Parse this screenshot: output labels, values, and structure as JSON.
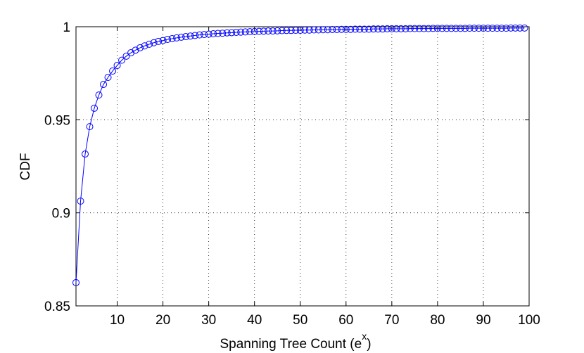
{
  "chart_data": {
    "type": "line",
    "xlabel": [
      "Spanning Tree Count (e",
      "x",
      ")"
    ],
    "ylabel": "CDF",
    "x": [
      1,
      2,
      3,
      4,
      5,
      6,
      7,
      8,
      9,
      10,
      11,
      12,
      13,
      14,
      15,
      16,
      17,
      18,
      19,
      20,
      21,
      22,
      23,
      24,
      25,
      26,
      27,
      28,
      29,
      30,
      31,
      32,
      33,
      34,
      35,
      36,
      37,
      38,
      39,
      40,
      41,
      42,
      43,
      44,
      45,
      46,
      47,
      48,
      49,
      50,
      51,
      52,
      53,
      54,
      55,
      56,
      57,
      58,
      59,
      60,
      61,
      62,
      63,
      64,
      65,
      66,
      67,
      68,
      69,
      70,
      71,
      72,
      73,
      74,
      75,
      76,
      77,
      78,
      79,
      80,
      81,
      82,
      83,
      84,
      85,
      86,
      87,
      88,
      89,
      90,
      91,
      92,
      93,
      94,
      95,
      96,
      97,
      98,
      99
    ],
    "series": [
      {
        "color": "#0000ff",
        "marker": "circle",
        "values": [
          0.8625,
          0.9063,
          0.9316,
          0.9463,
          0.9562,
          0.9633,
          0.969,
          0.9728,
          0.9762,
          0.9792,
          0.982,
          0.9842,
          0.986,
          0.9874,
          0.9887,
          0.9897,
          0.9906,
          0.9914,
          0.9921,
          0.9926,
          0.9932,
          0.9936,
          0.994,
          0.9944,
          0.9947,
          0.995,
          0.9953,
          0.9956,
          0.9958,
          0.996,
          0.9962,
          0.9964,
          0.9965,
          0.9967,
          0.9968,
          0.997,
          0.9971,
          0.9972,
          0.9973,
          0.9974,
          0.9975,
          0.9976,
          0.9977,
          0.9977,
          0.9978,
          0.9979,
          0.998,
          0.998,
          0.9981,
          0.9981,
          0.9982,
          0.9982,
          0.9983,
          0.9983,
          0.9984,
          0.9984,
          0.9985,
          0.9985,
          0.9986,
          0.9986,
          0.9986,
          0.9987,
          0.9987,
          0.9987,
          0.9987,
          0.9988,
          0.9988,
          0.9988,
          0.9989,
          0.9989,
          0.9989,
          0.9989,
          0.9989,
          0.999,
          0.999,
          0.999,
          0.999,
          0.999,
          0.9991,
          0.9991,
          0.9991,
          0.9991,
          0.9991,
          0.9991,
          0.9991,
          0.9991,
          0.9992,
          0.9992,
          0.9992,
          0.9992,
          0.9992,
          0.9992,
          0.9992,
          0.9992,
          0.9992,
          0.9993,
          0.9993,
          0.9993,
          0.9993
        ]
      }
    ],
    "xlim": [
      1,
      100
    ],
    "xticks": [
      10,
      20,
      30,
      40,
      50,
      60,
      70,
      80,
      90,
      100
    ],
    "ylim": [
      0.85,
      1
    ],
    "yticks": [
      0.85,
      0.9,
      0.95,
      1
    ],
    "grid": true
  }
}
